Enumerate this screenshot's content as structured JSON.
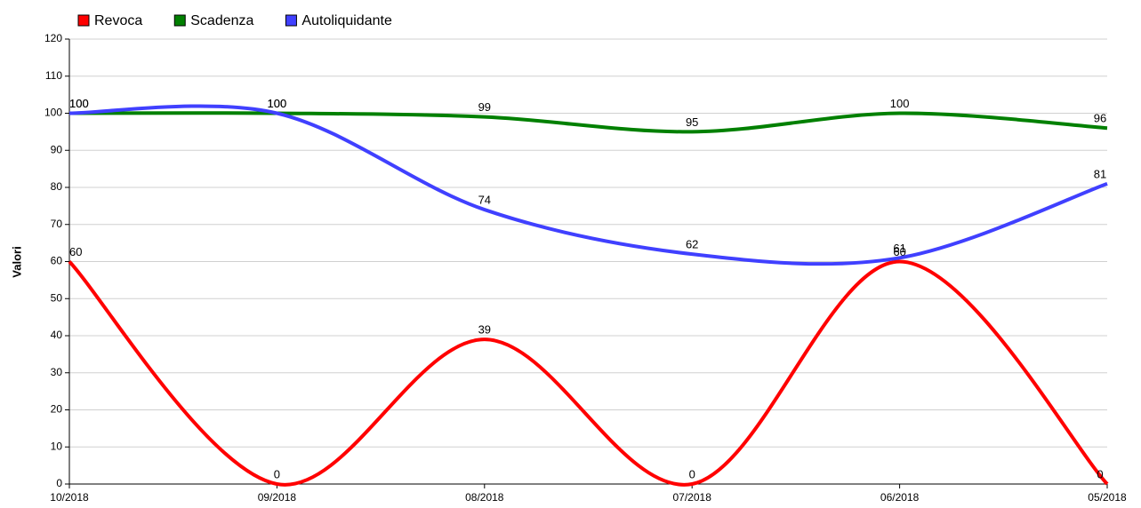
{
  "chart_data": {
    "type": "line",
    "y_label": "Valori",
    "categories": [
      "10/2018",
      "09/2018",
      "08/2018",
      "07/2018",
      "06/2018",
      "05/2018"
    ],
    "series": [
      {
        "name": "Revoca",
        "color": "#ff0000",
        "values": [
          60,
          0,
          39,
          0,
          60,
          0
        ]
      },
      {
        "name": "Scadenza",
        "color": "#008000",
        "values": [
          100,
          100,
          99,
          95,
          100,
          96
        ]
      },
      {
        "name": "Autoliquidante",
        "color": "#4040ff",
        "values": [
          100,
          100,
          74,
          62,
          61,
          81
        ]
      }
    ],
    "ylim": [
      0,
      120
    ],
    "yticks": [
      0,
      10,
      20,
      30,
      40,
      50,
      60,
      70,
      80,
      90,
      100,
      110,
      120
    ],
    "grid": true,
    "legend": "top-left",
    "smooth": true
  }
}
